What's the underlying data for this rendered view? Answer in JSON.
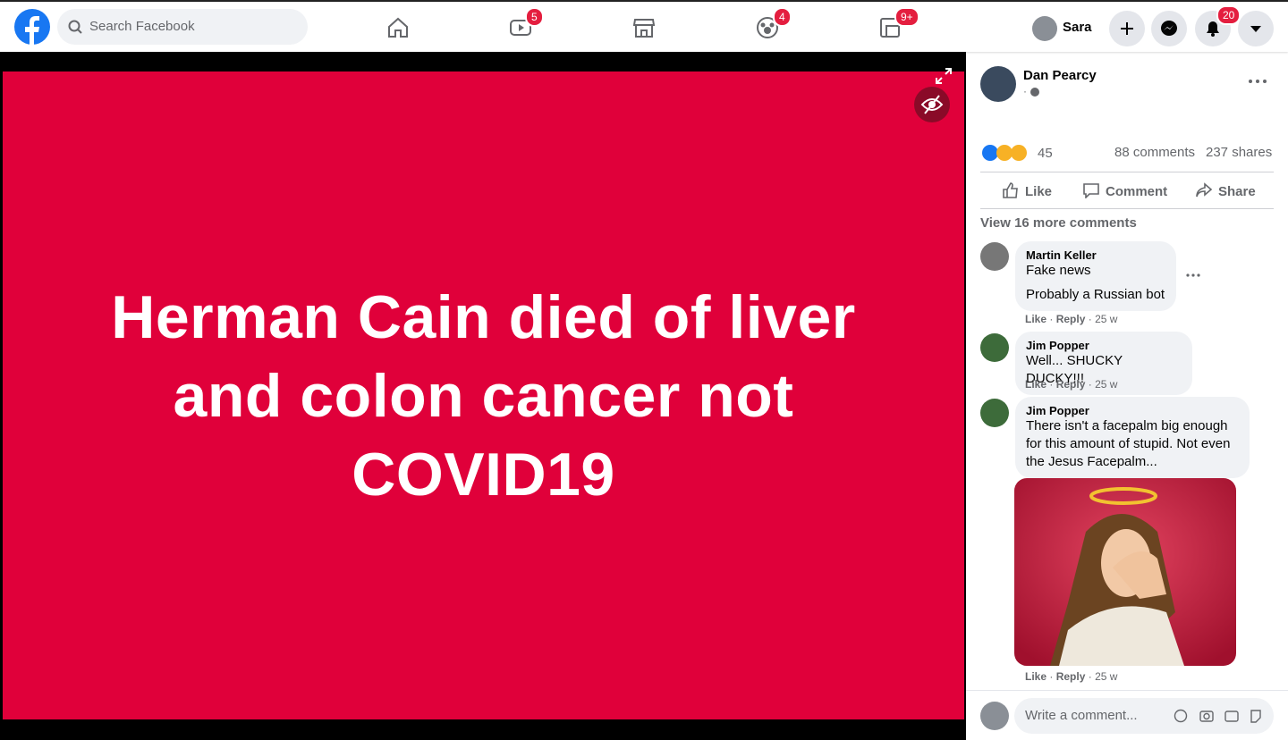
{
  "nav": {
    "search": "Search Facebook",
    "badges": {
      "watch": "5",
      "groups": "4",
      "gaming": "9+",
      "notifications": "20"
    },
    "user": "Sara"
  },
  "post": {
    "image_text": "Herman Cain died of liver and colon cancer not COVID19",
    "author": "Dan Pearcy",
    "separator": "·",
    "reaction_count": "45",
    "comments": "88 comments",
    "shares": "237 shares",
    "actions": {
      "like": "Like",
      "comment": "Comment",
      "share": "Share"
    },
    "view_more": "View 16 more comments"
  },
  "comments": [
    {
      "name": "Martin Keller",
      "lines": [
        "Fake news",
        "Probably a Russian bot"
      ],
      "like": "Like",
      "reply": "Reply",
      "time": "25 w"
    },
    {
      "name": "Jim Popper",
      "lines": [
        "Well... SHUCKY DUCKY!!!"
      ],
      "like": "Like",
      "reply": "Reply",
      "time": "25 w"
    },
    {
      "name": "Jim Popper",
      "lines": [
        "There isn't a facepalm big enough for this amount of stupid. Not even the Jesus Facepalm..."
      ],
      "like": "Like",
      "reply": "Reply",
      "time": "25 w"
    }
  ],
  "composer": {
    "placeholder": "Write a comment..."
  }
}
